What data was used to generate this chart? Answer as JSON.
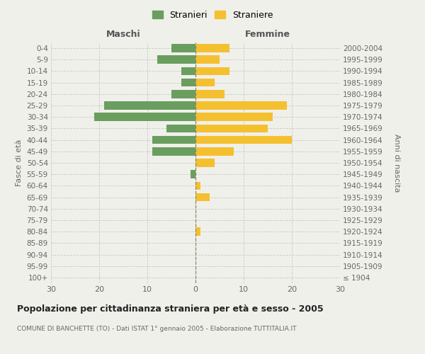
{
  "age_groups": [
    "100+",
    "95-99",
    "90-94",
    "85-89",
    "80-84",
    "75-79",
    "70-74",
    "65-69",
    "60-64",
    "55-59",
    "50-54",
    "45-49",
    "40-44",
    "35-39",
    "30-34",
    "25-29",
    "20-24",
    "15-19",
    "10-14",
    "5-9",
    "0-4"
  ],
  "birth_years": [
    "≤ 1904",
    "1905-1909",
    "1910-1914",
    "1915-1919",
    "1920-1924",
    "1925-1929",
    "1930-1934",
    "1935-1939",
    "1940-1944",
    "1945-1949",
    "1950-1954",
    "1955-1959",
    "1960-1964",
    "1965-1969",
    "1970-1974",
    "1975-1979",
    "1980-1984",
    "1985-1989",
    "1990-1994",
    "1995-1999",
    "2000-2004"
  ],
  "maschi": [
    0,
    0,
    0,
    0,
    0,
    0,
    0,
    0,
    0,
    1,
    0,
    9,
    9,
    6,
    21,
    19,
    5,
    3,
    3,
    8,
    5
  ],
  "femmine": [
    0,
    0,
    0,
    0,
    1,
    0,
    0,
    3,
    1,
    0,
    4,
    8,
    20,
    15,
    16,
    19,
    6,
    4,
    7,
    5,
    7
  ],
  "maschi_color": "#6a9e5e",
  "femmine_color": "#f5c030",
  "background_color": "#f0f0eb",
  "grid_color": "#c8c8c8",
  "title": "Popolazione per cittadinanza straniera per età e sesso - 2005",
  "subtitle": "COMUNE DI BANCHETTE (TO) - Dati ISTAT 1° gennaio 2005 - Elaborazione TUTTITALIA.IT",
  "xlabel_left": "Maschi",
  "xlabel_right": "Femmine",
  "ylabel_left": "Fasce di età",
  "ylabel_right": "Anni di nascita",
  "legend_maschi": "Stranieri",
  "legend_femmine": "Straniere",
  "xlim": 30
}
